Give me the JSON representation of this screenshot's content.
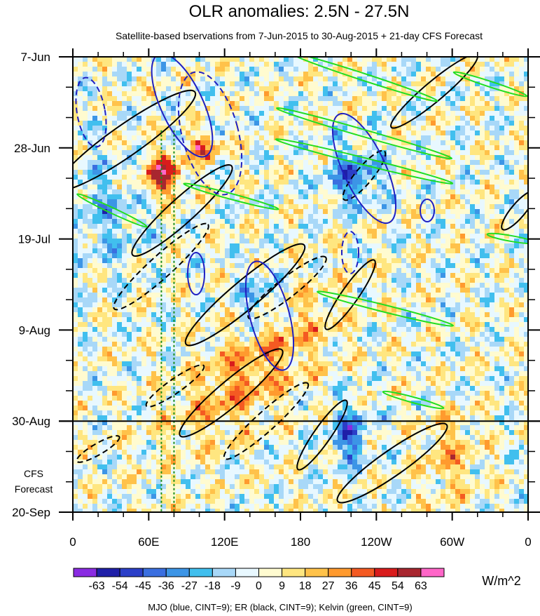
{
  "chart_data": {
    "type": "heatmap",
    "title": "OLR anomalies: 2.5N - 27.5N",
    "subtitle": "Satellite-based bservations from 7-Jun-2015 to 30-Aug-2015 + 21-day CFS Forecast",
    "x_ticks": [
      "0",
      "60E",
      "120E",
      "180",
      "120W",
      "60W",
      "0"
    ],
    "x_tick_values": [
      0,
      60,
      120,
      180,
      240,
      300,
      360
    ],
    "xlim": [
      0,
      360
    ],
    "y_ticks": [
      "7-Jun",
      "28-Jun",
      "19-Jul",
      "9-Aug",
      "30-Aug",
      "20-Sep"
    ],
    "y_tick_values": [
      "2015-06-07",
      "2015-06-28",
      "2015-07-19",
      "2015-08-09",
      "2015-08-30",
      "2015-09-20"
    ],
    "ylim": [
      "2015-06-07",
      "2015-09-20"
    ],
    "forecast_label_line1": "CFS",
    "forecast_label_line2": "Forecast",
    "forecast_start": "2015-08-30",
    "colorbar": {
      "unit": "W/m^2",
      "labels": [
        "-63",
        "-54",
        "-45",
        "-36",
        "-27",
        "-18",
        "-9",
        "0",
        "9",
        "18",
        "27",
        "36",
        "45",
        "54",
        "63"
      ],
      "colors": [
        "#8a2be2",
        "#1f1fa8",
        "#2b3fc8",
        "#3a6fe0",
        "#3c95e6",
        "#41bfee",
        "#a8d8f8",
        "#e8f8ff",
        "#fffbd0",
        "#ffe680",
        "#ffc24a",
        "#ff9a2e",
        "#f45a22",
        "#d91c1c",
        "#a8262f",
        "#ff66c8"
      ]
    },
    "legend_text": "MJO (blue, CINT=9); ER (black, CINT=9); Kelvin (green, CINT=9)",
    "series": [
      {
        "name": "MJO",
        "color": "#2020c0"
      },
      {
        "name": "ER",
        "color": "#000000"
      },
      {
        "name": "Kelvin",
        "color": "#22dd22"
      }
    ],
    "reference_lines_x": [
      70,
      80
    ],
    "reference_line_color": "#1a8c1a",
    "grid": false
  }
}
